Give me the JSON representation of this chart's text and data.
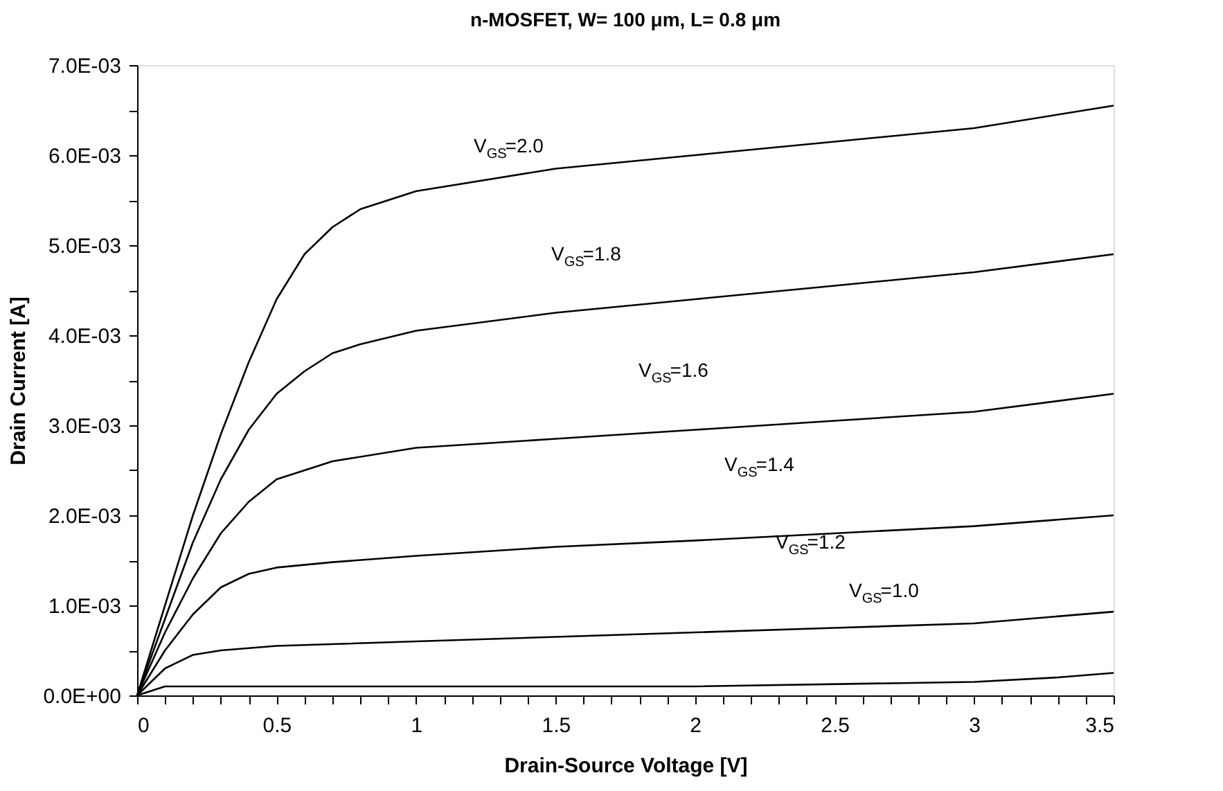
{
  "chart_data": {
    "type": "line",
    "title": "n-MOSFET, W= 100 μm, L= 0.8 μm",
    "xlabel": "Drain-Source Voltage [V]",
    "ylabel": "Drain Current [A]",
    "xlim": [
      0,
      3.5
    ],
    "ylim": [
      0,
      0.007
    ],
    "xticks": [
      0,
      {
        "value": 0.1,
        "label": null
      },
      {
        "value": 0.2,
        "label": null
      },
      {
        "value": 0.3,
        "label": null
      },
      {
        "value": 0.4,
        "label": null
      },
      0.5,
      {
        "value": 0.6,
        "label": null
      },
      {
        "value": 0.7,
        "label": null
      },
      {
        "value": 0.8,
        "label": null
      },
      {
        "value": 0.9,
        "label": null
      },
      1,
      {
        "value": 1.1,
        "label": null
      },
      {
        "value": 1.2,
        "label": null
      },
      {
        "value": 1.3,
        "label": null
      },
      {
        "value": 1.4,
        "label": null
      },
      1.5,
      {
        "value": 1.6,
        "label": null
      },
      {
        "value": 1.7,
        "label": null
      },
      {
        "value": 1.8,
        "label": null
      },
      {
        "value": 1.9,
        "label": null
      },
      2,
      {
        "value": 2.1,
        "label": null
      },
      {
        "value": 2.2,
        "label": null
      },
      {
        "value": 2.3,
        "label": null
      },
      {
        "value": 2.4,
        "label": null
      },
      2.5,
      {
        "value": 2.6,
        "label": null
      },
      {
        "value": 2.7,
        "label": null
      },
      {
        "value": 2.8,
        "label": null
      },
      {
        "value": 2.9,
        "label": null
      },
      3,
      {
        "value": 3.1,
        "label": null
      },
      {
        "value": 3.2,
        "label": null
      },
      {
        "value": 3.3,
        "label": null
      },
      {
        "value": 3.4,
        "label": null
      },
      3.5
    ],
    "yticks": [
      {
        "value": 0,
        "label": "0.0E+00"
      },
      {
        "value": 0.0005,
        "label": null
      },
      {
        "value": 0.001,
        "label": "1.0E-03"
      },
      {
        "value": 0.0015,
        "label": null
      },
      {
        "value": 0.002,
        "label": "2.0E-03"
      },
      {
        "value": 0.0025,
        "label": null
      },
      {
        "value": 0.003,
        "label": "3.0E-03"
      },
      {
        "value": 0.0035,
        "label": null
      },
      {
        "value": 0.004,
        "label": "4.0E-03"
      },
      {
        "value": 0.0045,
        "label": null
      },
      {
        "value": 0.005,
        "label": "5.0E-03"
      },
      {
        "value": 0.0055,
        "label": null
      },
      {
        "value": 0.006,
        "label": "6.0E-03"
      },
      {
        "value": 0.0065,
        "label": null
      },
      {
        "value": 0.007,
        "label": "7.0E-03"
      }
    ],
    "grid": false,
    "marker": "none",
    "line_style": "solid",
    "series": [
      {
        "color": "#000000",
        "x": [
          0,
          0.1,
          0.2,
          0.3,
          0.4,
          0.5,
          0.6,
          0.7,
          0.8,
          0.9,
          1.0,
          1.5,
          2.0,
          2.5,
          3.0,
          3.5
        ],
        "values": [
          0,
          0.001,
          0.002,
          0.0029,
          0.0037,
          0.0044,
          0.0049,
          0.0052,
          0.0054,
          0.0055,
          0.0056,
          0.00585,
          0.006,
          0.00615,
          0.0063,
          0.00655
        ]
      },
      {
        "color": "#000000",
        "x": [
          0,
          0.1,
          0.2,
          0.3,
          0.4,
          0.5,
          0.6,
          0.7,
          0.8,
          1.0,
          1.5,
          2.0,
          2.5,
          3.0,
          3.5
        ],
        "values": [
          0,
          0.00085,
          0.0017,
          0.0024,
          0.00295,
          0.00335,
          0.0036,
          0.0038,
          0.0039,
          0.00405,
          0.00425,
          0.0044,
          0.00455,
          0.0047,
          0.0049
        ]
      },
      {
        "color": "#000000",
        "x": [
          0,
          0.1,
          0.2,
          0.3,
          0.4,
          0.5,
          0.6,
          0.7,
          1.0,
          1.5,
          2.0,
          2.5,
          3.0,
          3.5
        ],
        "values": [
          0,
          0.0007,
          0.0013,
          0.0018,
          0.00215,
          0.0024,
          0.0025,
          0.0026,
          0.00275,
          0.00285,
          0.00295,
          0.00305,
          0.00315,
          0.00335
        ]
      },
      {
        "color": "#000000",
        "x": [
          0,
          0.1,
          0.2,
          0.3,
          0.4,
          0.5,
          0.7,
          1.0,
          1.5,
          2.0,
          2.5,
          3.0,
          3.5
        ],
        "values": [
          0,
          0.0005,
          0.0009,
          0.0012,
          0.00135,
          0.00142,
          0.00148,
          0.00155,
          0.00165,
          0.00172,
          0.0018,
          0.00188,
          0.002
        ]
      },
      {
        "color": "#000000",
        "x": [
          0,
          0.1,
          0.2,
          0.3,
          0.5,
          1.0,
          1.5,
          2.0,
          2.5,
          3.0,
          3.5
        ],
        "values": [
          0,
          0.0003,
          0.00045,
          0.0005,
          0.00055,
          0.0006,
          0.00065,
          0.0007,
          0.00075,
          0.0008,
          0.00093
        ]
      },
      {
        "color": "#000000",
        "x": [
          0,
          0.1,
          0.2,
          1.0,
          2.0,
          3.0,
          3.3,
          3.5
        ],
        "values": [
          0,
          0.0001,
          0.0001,
          0.0001,
          0.0001,
          0.00015,
          0.0002,
          0.00025
        ]
      }
    ],
    "annotations": [
      "V$_{GS}$=2.0",
      "V$_{GS}$=1.8",
      "V$_{GS}$=1.6",
      "V$_{GS}$=1.4",
      "V$_{GS}$=1.2",
      "V$_{GS}$=1.0"
    ]
  }
}
